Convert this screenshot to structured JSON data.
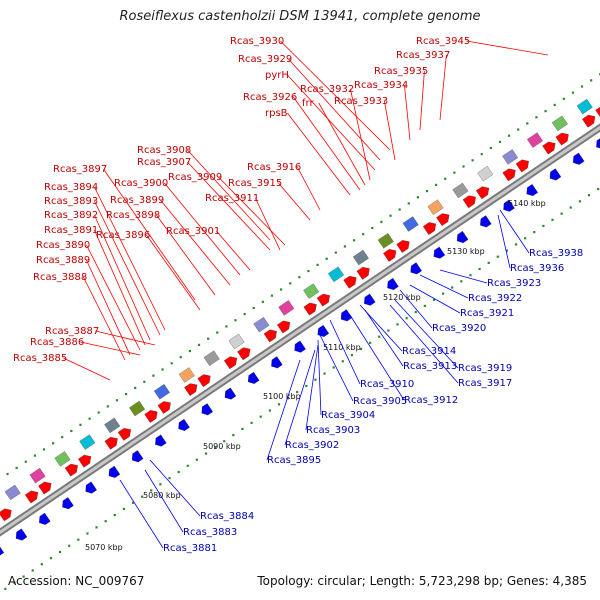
{
  "title": "Roseiflexus castenholzii DSM 13941, complete genome",
  "footer": {
    "accession": "Accession: NC_009767",
    "topology": "Topology: circular; Length: 5,723,298 bp; Genes: 4,385"
  },
  "colors": {
    "forward": "#ff0000",
    "reverse": "#0000ee",
    "forward_label": "#c00000",
    "reverse_label": "#0000b0",
    "backbone": "#8c8c8c"
  },
  "scale_labels": [
    "5070 kbp",
    "5080 kbp",
    "5090 kbp",
    "5100 kbp",
    "5110 kbp",
    "5120 kbp",
    "5130 kbp",
    "5140 kbp"
  ],
  "forward_labels": [
    "Rcas_3945",
    "Rcas_3930",
    "Rcas_3937",
    "Rcas_3929",
    "Rcas_3935",
    "pyrH",
    "Rcas_3934",
    "Rcas_3932",
    "frr",
    "Rcas_3926",
    "Rcas_3933",
    "rpsB",
    "Rcas_3908",
    "Rcas_3907",
    "Rcas_3916",
    "Rcas_3897",
    "Rcas_3909",
    "Rcas_3900",
    "Rcas_3915",
    "Rcas_3894",
    "Rcas_3899",
    "Rcas_3911",
    "Rcas_3893",
    "Rcas_3898",
    "Rcas_3892",
    "Rcas_3901",
    "Rcas_3891",
    "Rcas_3896",
    "Rcas_3890",
    "Rcas_3889",
    "Rcas_3888",
    "Rcas_3887",
    "Rcas_3886",
    "Rcas_3885"
  ],
  "reverse_labels": [
    "Rcas_3938",
    "Rcas_3936",
    "Rcas_3923",
    "Rcas_3922",
    "Rcas_3921",
    "Rcas_3920",
    "Rcas_3914",
    "Rcas_3913",
    "Rcas_3919",
    "Rcas_3917",
    "Rcas_3910",
    "Rcas_3912",
    "Rcas_3905",
    "Rcas_3904",
    "Rcas_3903",
    "Rcas_3902",
    "Rcas_3895",
    "Rcas_3884",
    "Rcas_3883",
    "Rcas_3881"
  ]
}
